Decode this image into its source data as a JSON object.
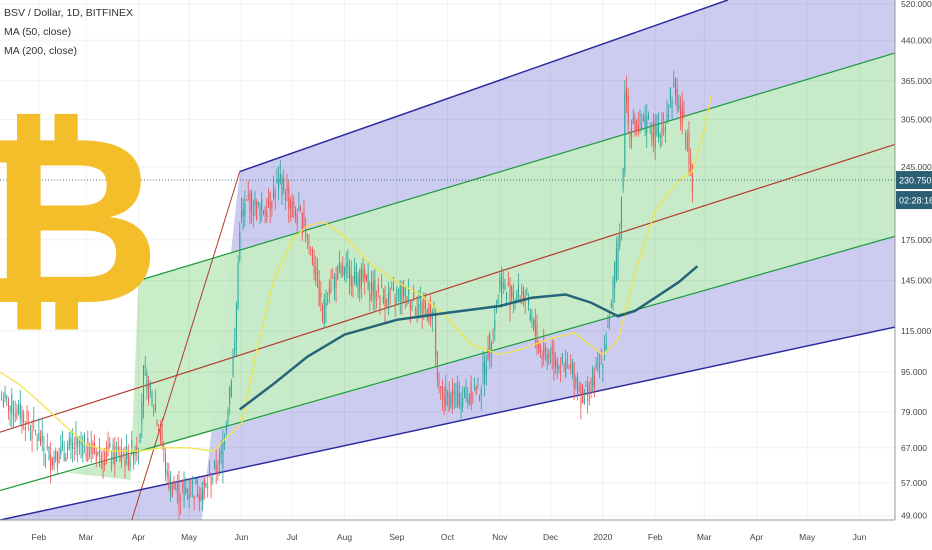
{
  "legend": {
    "symbol": "BSV / Dollar, 1D, BITFINEX",
    "ma50": "MA (50, close)",
    "ma200": "MA (200, close)"
  },
  "price_scale": {
    "current_price": "230.750",
    "countdown": "02:28:16"
  },
  "logo_glyph": "₿",
  "colors": {
    "up": "#26a69a",
    "down": "#ef5350",
    "ma50": "#f2e34b",
    "ma200": "#1d5d74",
    "channel_outer": "#2c2ca0",
    "channel_inner": "#1a9a3c",
    "channel_median": "#b23b2c",
    "fill_outer": "#c9c9ef",
    "fill_inner": "#c6ecc6",
    "logo": "#f4bd2a",
    "price_tag": "#2b5f74"
  },
  "chart_data": {
    "type": "candlestick",
    "title": "BSV / Dollar, 1D, BITFINEX",
    "x_axis": {
      "range": [
        "2019-01-09",
        "2020-06-22"
      ],
      "tick_labels": [
        "Feb",
        "Mar",
        "Apr",
        "May",
        "Jun",
        "Jul",
        "Aug",
        "Sep",
        "Oct",
        "Nov",
        "Dec",
        "2020",
        "Feb",
        "Mar",
        "Apr",
        "May",
        "Jun"
      ],
      "tick_dates": [
        "2019-02-01",
        "2019-03-01",
        "2019-04-01",
        "2019-05-01",
        "2019-06-01",
        "2019-07-01",
        "2019-08-01",
        "2019-09-01",
        "2019-10-01",
        "2019-11-01",
        "2019-12-01",
        "2020-01-01",
        "2020-02-01",
        "2020-03-01",
        "2020-04-01",
        "2020-05-01",
        "2020-06-01"
      ]
    },
    "y_axis": {
      "scale": "log",
      "range": [
        48,
        530
      ],
      "tick_labels": [
        "520.000",
        "440.000",
        "365.000",
        "305.000",
        "245.000",
        "175.000",
        "145.000",
        "115.000",
        "95.000",
        "79.000",
        "67.000",
        "57.000",
        "49.000"
      ],
      "tick_values": [
        520,
        440,
        365,
        305,
        245,
        175,
        145,
        115,
        95,
        79,
        67,
        57,
        49
      ]
    },
    "series": [
      {
        "kind": "price",
        "points": [
          [
            "2019-01-10",
            84
          ],
          [
            "2019-01-22",
            78
          ],
          [
            "2019-02-01",
            70
          ],
          [
            "2019-02-08",
            64
          ],
          [
            "2019-02-15",
            66
          ],
          [
            "2019-02-25",
            68
          ],
          [
            "2019-03-05",
            66
          ],
          [
            "2019-03-15",
            65
          ],
          [
            "2019-03-25",
            64
          ],
          [
            "2019-04-01",
            68
          ],
          [
            "2019-04-04",
            94
          ],
          [
            "2019-04-10",
            82
          ],
          [
            "2019-04-15",
            68
          ],
          [
            "2019-04-18",
            58
          ],
          [
            "2019-04-25",
            54
          ],
          [
            "2019-05-01",
            56
          ],
          [
            "2019-05-10",
            55
          ],
          [
            "2019-05-20",
            64
          ],
          [
            "2019-05-28",
            108
          ],
          [
            "2019-05-31",
            190
          ],
          [
            "2019-06-05",
            210
          ],
          [
            "2019-06-12",
            200
          ],
          [
            "2019-06-18",
            210
          ],
          [
            "2019-06-22",
            225
          ],
          [
            "2019-06-26",
            225
          ],
          [
            "2019-07-01",
            200
          ],
          [
            "2019-07-08",
            190
          ],
          [
            "2019-07-15",
            150
          ],
          [
            "2019-07-19",
            122
          ],
          [
            "2019-07-22",
            140
          ],
          [
            "2019-07-29",
            150
          ],
          [
            "2019-08-05",
            150
          ],
          [
            "2019-08-12",
            145
          ],
          [
            "2019-08-20",
            137
          ],
          [
            "2019-08-28",
            133
          ],
          [
            "2019-09-03",
            137
          ],
          [
            "2019-09-10",
            133
          ],
          [
            "2019-09-18",
            127
          ],
          [
            "2019-09-23",
            125
          ],
          [
            "2019-09-25",
            87
          ],
          [
            "2019-10-01",
            84
          ],
          [
            "2019-10-10",
            85
          ],
          [
            "2019-10-20",
            88
          ],
          [
            "2019-10-26",
            109
          ],
          [
            "2019-11-01",
            143
          ],
          [
            "2019-11-07",
            136
          ],
          [
            "2019-11-15",
            136
          ],
          [
            "2019-11-20",
            120
          ],
          [
            "2019-11-25",
            104
          ],
          [
            "2019-12-01",
            103
          ],
          [
            "2019-12-08",
            98
          ],
          [
            "2019-12-15",
            94
          ],
          [
            "2019-12-20",
            84
          ],
          [
            "2019-12-25",
            90
          ],
          [
            "2019-12-31",
            100
          ],
          [
            "2020-01-04",
            118
          ],
          [
            "2020-01-07",
            140
          ],
          [
            "2020-01-10",
            170
          ],
          [
            "2020-01-13",
            240
          ],
          [
            "2020-01-14",
            360
          ],
          [
            "2020-01-16",
            300
          ],
          [
            "2020-01-22",
            290
          ],
          [
            "2020-01-28",
            300
          ],
          [
            "2020-02-02",
            280
          ],
          [
            "2020-02-07",
            310
          ],
          [
            "2020-02-12",
            355
          ],
          [
            "2020-02-15",
            320
          ],
          [
            "2020-02-20",
            280
          ],
          [
            "2020-02-23",
            230
          ]
        ]
      },
      {
        "name": "MA (50, close)",
        "kind": "ma50",
        "points": [
          [
            "2019-01-09",
            95
          ],
          [
            "2019-01-20",
            90
          ],
          [
            "2019-02-01",
            83
          ],
          [
            "2019-02-15",
            75
          ],
          [
            "2019-03-01",
            68
          ],
          [
            "2019-03-15",
            66
          ],
          [
            "2019-04-01",
            66
          ],
          [
            "2019-04-15",
            67
          ],
          [
            "2019-05-01",
            67
          ],
          [
            "2019-05-15",
            66
          ],
          [
            "2019-06-01",
            75
          ],
          [
            "2019-06-10",
            105
          ],
          [
            "2019-06-20",
            145
          ],
          [
            "2019-07-01",
            175
          ],
          [
            "2019-07-10",
            187
          ],
          [
            "2019-07-20",
            190
          ],
          [
            "2019-08-01",
            178
          ],
          [
            "2019-08-15",
            158
          ],
          [
            "2019-09-01",
            144
          ],
          [
            "2019-09-15",
            136
          ],
          [
            "2019-10-01",
            122
          ],
          [
            "2019-10-15",
            108
          ],
          [
            "2019-11-01",
            103
          ],
          [
            "2019-11-15",
            106
          ],
          [
            "2019-12-01",
            111
          ],
          [
            "2019-12-15",
            114
          ],
          [
            "2020-01-01",
            103
          ],
          [
            "2020-01-10",
            110
          ],
          [
            "2020-01-20",
            150
          ],
          [
            "2020-02-01",
            200
          ],
          [
            "2020-02-15",
            230
          ],
          [
            "2020-02-23",
            240
          ],
          [
            "2020-03-01",
            290
          ],
          [
            "2020-03-05",
            340
          ]
        ]
      },
      {
        "name": "MA (200, close)",
        "kind": "ma200",
        "points": [
          [
            "2019-05-31",
            80
          ],
          [
            "2019-06-20",
            90
          ],
          [
            "2019-07-10",
            102
          ],
          [
            "2019-08-01",
            113
          ],
          [
            "2019-09-01",
            121
          ],
          [
            "2019-10-01",
            125
          ],
          [
            "2019-11-01",
            129
          ],
          [
            "2019-11-20",
            134
          ],
          [
            "2019-12-10",
            136
          ],
          [
            "2019-12-25",
            131
          ],
          [
            "2020-01-10",
            123
          ],
          [
            "2020-01-20",
            126
          ],
          [
            "2020-02-01",
            134
          ],
          [
            "2020-02-15",
            144
          ],
          [
            "2020-02-26",
            155
          ]
        ]
      }
    ],
    "channels": [
      {
        "kind": "outer",
        "points": [
          [
            "2019-01-09",
            48
          ],
          [
            "2020-06-22",
            117
          ]
        ]
      },
      {
        "kind": "inner",
        "points": [
          [
            "2019-01-09",
            55
          ],
          [
            "2020-06-22",
            178
          ]
        ]
      },
      {
        "kind": "median",
        "points": [
          [
            "2019-01-09",
            72
          ],
          [
            "2020-06-22",
            272
          ]
        ]
      },
      {
        "kind": "inner",
        "points": [
          [
            "2019-04-01",
            145
          ],
          [
            "2020-06-22",
            415
          ]
        ]
      },
      {
        "kind": "outer",
        "points": [
          [
            "2019-05-31",
            240
          ],
          [
            "2020-03-15",
            530
          ]
        ]
      }
    ],
    "current_price": 230.75
  }
}
